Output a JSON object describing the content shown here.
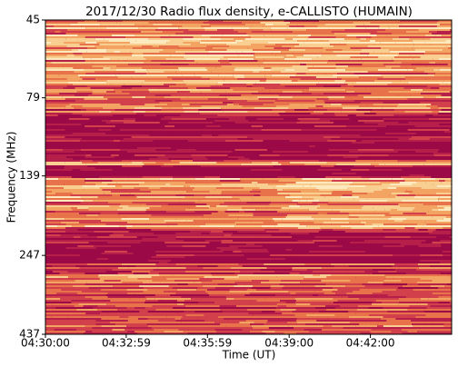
{
  "chart_data": {
    "type": "spectrogram",
    "title": "2017/12/30  Radio flux density, e-CALLISTO (HUMAIN)",
    "x_label": "Time (UT)",
    "y_label": "Frequency (MHz)",
    "xlim": [
      "04:30:00",
      "04:45:00"
    ],
    "xticks": [
      "04:30:00",
      "04:32:59",
      "04:35:59",
      "04:39:00",
      "04:42:00"
    ],
    "ylim": [
      437,
      45
    ],
    "yticks": [
      45,
      79,
      139,
      247,
      437
    ],
    "y_scale": "log"
  }
}
